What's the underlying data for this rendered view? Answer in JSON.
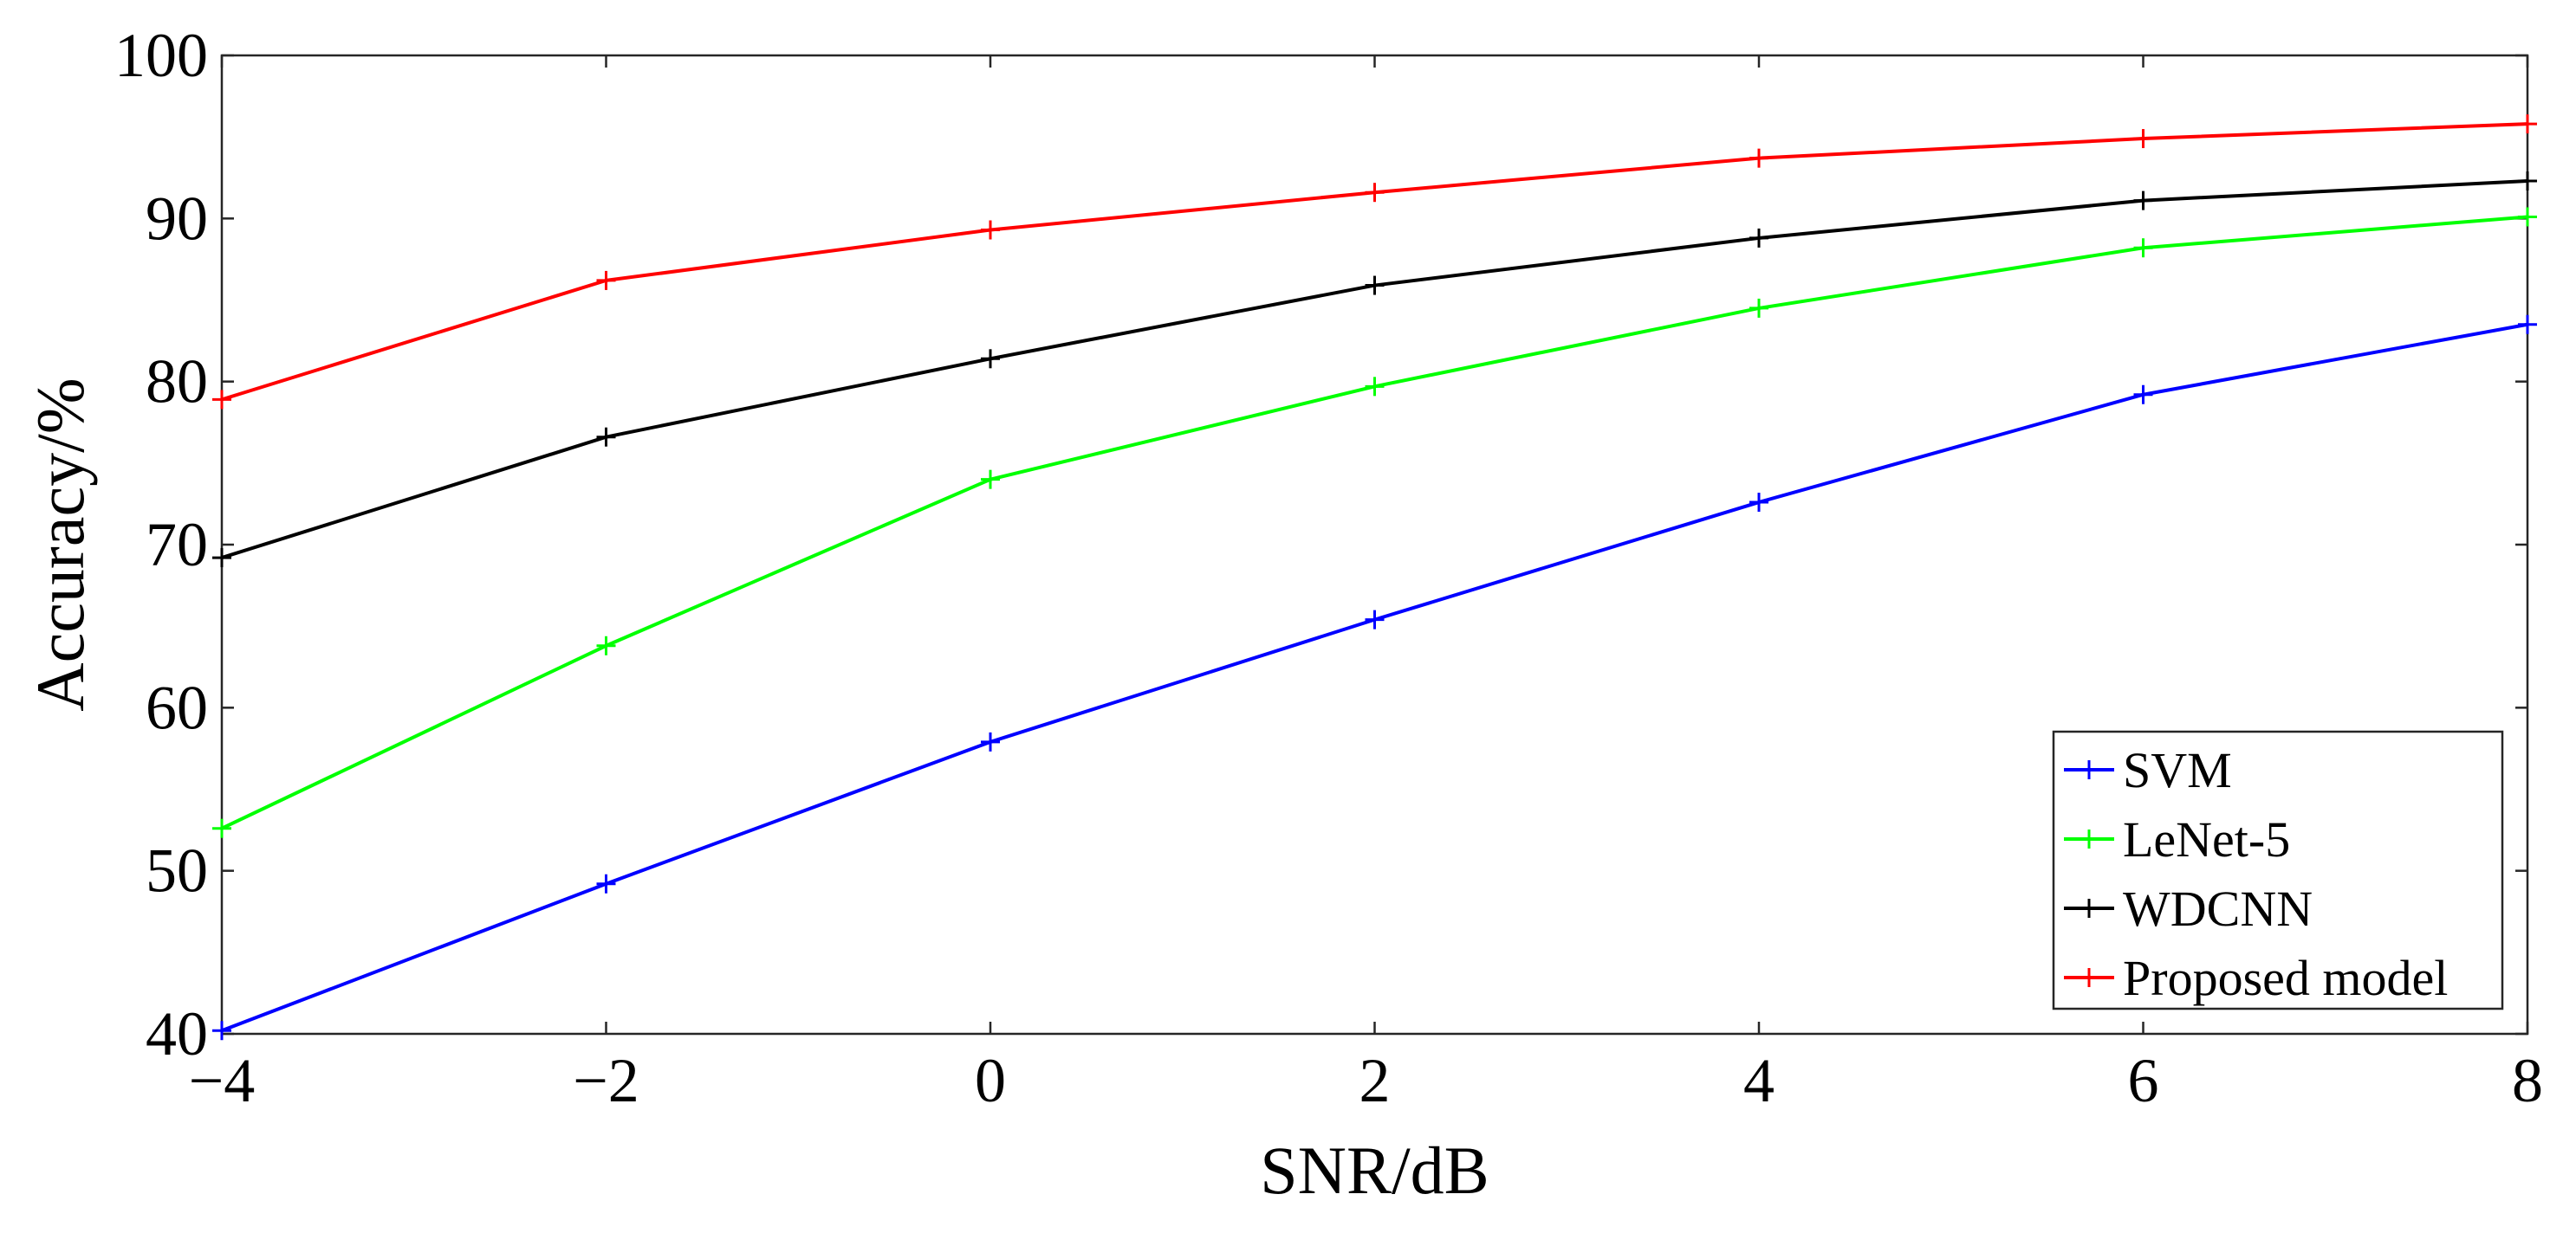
{
  "chart_data": {
    "type": "line",
    "title": "",
    "xlabel": "SNR/dB",
    "ylabel": "Accuracy/%",
    "x": [
      -4,
      -2,
      0,
      2,
      4,
      6,
      8
    ],
    "x_tick_labels": [
      "−4",
      "−2",
      "0",
      "2",
      "4",
      "6",
      "8"
    ],
    "xlim": [
      -4,
      8
    ],
    "ylim": [
      40,
      100
    ],
    "y_ticks": [
      40,
      50,
      60,
      70,
      80,
      90,
      100
    ],
    "grid": false,
    "legend_position": "bottom-right",
    "series": [
      {
        "name": "SVM",
        "color": "#0000ff",
        "marker": "+",
        "values": [
          40.2,
          49.2,
          57.9,
          65.4,
          72.6,
          79.2,
          83.5
        ]
      },
      {
        "name": "LeNet-5",
        "color": "#00ff00",
        "marker": "+",
        "values": [
          52.6,
          63.8,
          74.0,
          79.7,
          84.5,
          88.2,
          90.1
        ]
      },
      {
        "name": "WDCNN",
        "color": "#000000",
        "marker": "+",
        "values": [
          69.2,
          76.6,
          81.4,
          85.9,
          88.8,
          91.1,
          92.3
        ]
      },
      {
        "name": "Proposed model",
        "color": "#ff0000",
        "marker": "+",
        "values": [
          78.9,
          86.2,
          89.3,
          91.6,
          93.7,
          94.9,
          95.8
        ]
      }
    ]
  }
}
